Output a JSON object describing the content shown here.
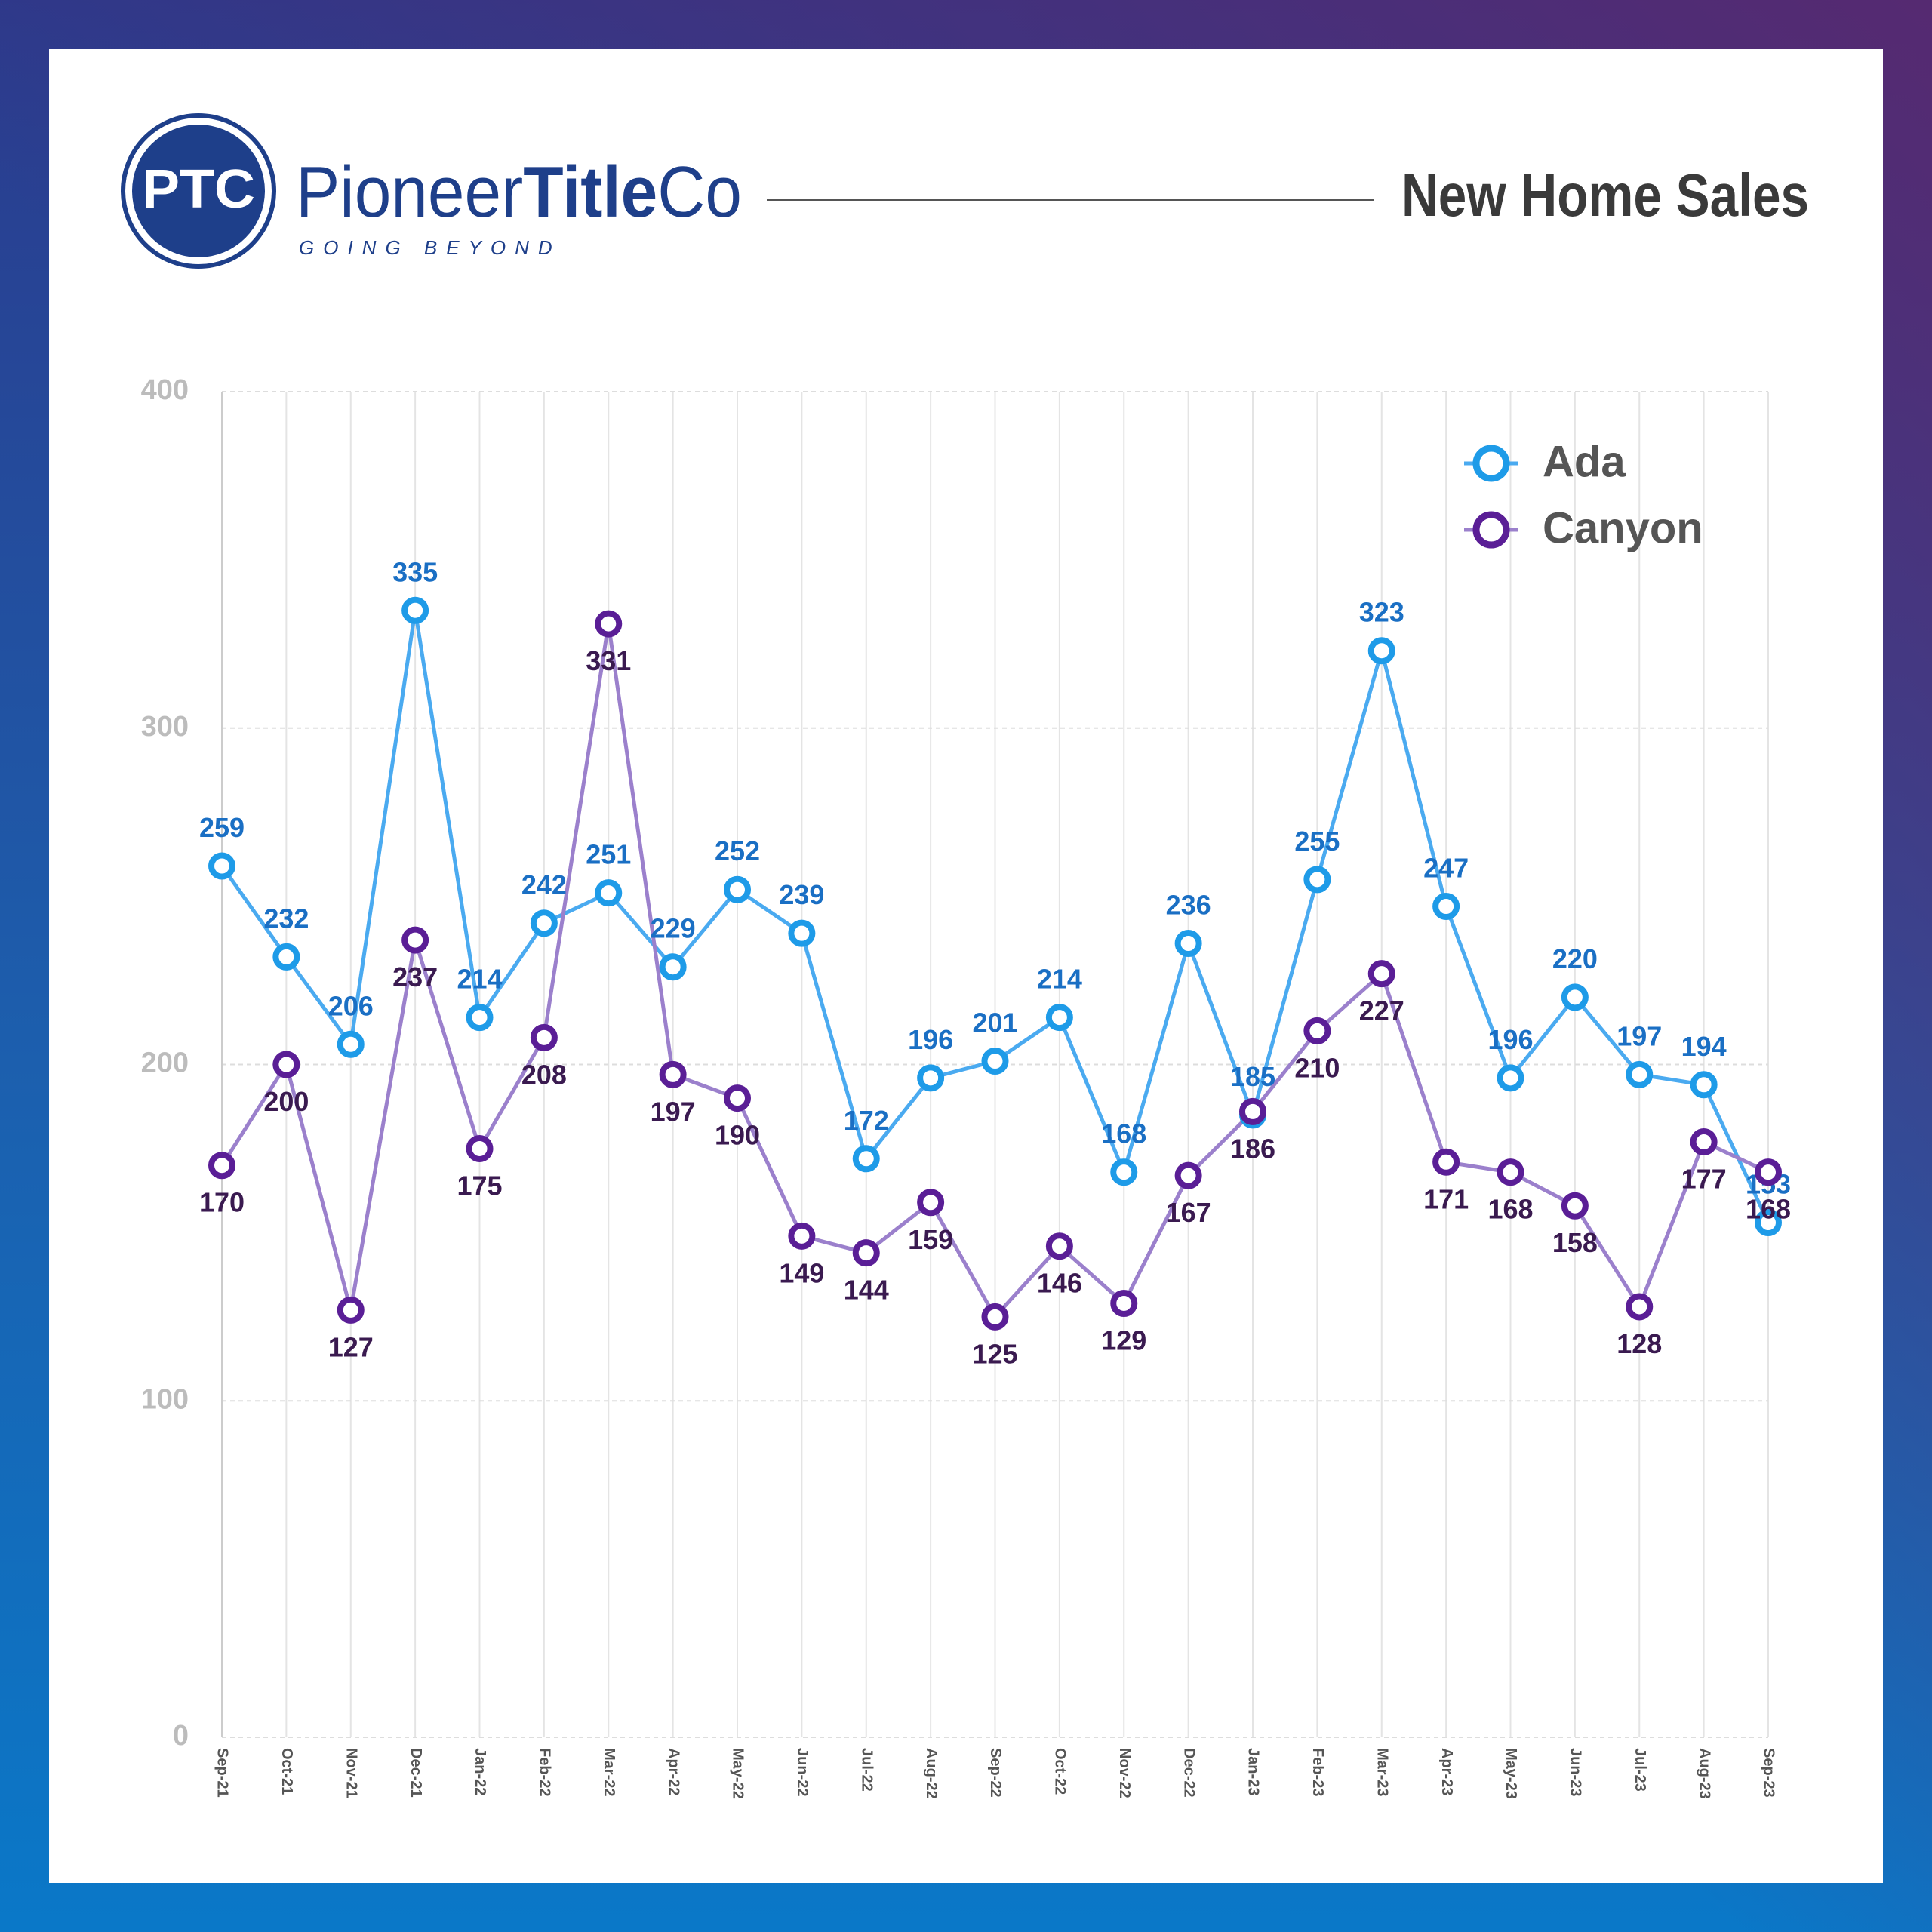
{
  "header": {
    "logo_mark": "PTC",
    "brand": [
      "Pioneer",
      "Title",
      "Co"
    ],
    "tagline": "GOING BEYOND"
  },
  "chart_data": {
    "type": "line",
    "title": "New Home Sales",
    "categories": [
      "Sep-21",
      "Oct-21",
      "Nov-21",
      "Dec-21",
      "Jan-22",
      "Feb-22",
      "Mar-22",
      "Apr-22",
      "May-22",
      "Jun-22",
      "Jul-22",
      "Aug-22",
      "Sep-22",
      "Oct-22",
      "Nov-22",
      "Dec-22",
      "Jan-23",
      "Feb-23",
      "Mar-23",
      "Apr-23",
      "May-23",
      "Jun-23",
      "Jul-23",
      "Aug-23",
      "Sep-23"
    ],
    "series": [
      {
        "name": "Ada",
        "color": "#4aaaf0",
        "values": [
          259,
          232,
          206,
          335,
          214,
          242,
          251,
          229,
          252,
          239,
          172,
          196,
          201,
          214,
          168,
          236,
          185,
          255,
          323,
          247,
          196,
          220,
          197,
          194,
          153
        ]
      },
      {
        "name": "Canyon",
        "color": "#9b80cc",
        "values": [
          170,
          200,
          127,
          237,
          175,
          208,
          331,
          197,
          190,
          149,
          144,
          159,
          125,
          146,
          129,
          167,
          186,
          210,
          227,
          171,
          168,
          158,
          128,
          177,
          168
        ]
      }
    ],
    "ylim": [
      0,
      400
    ],
    "yticks": [
      0,
      100,
      200,
      300,
      400
    ],
    "grid": true,
    "legend": "top-right"
  }
}
